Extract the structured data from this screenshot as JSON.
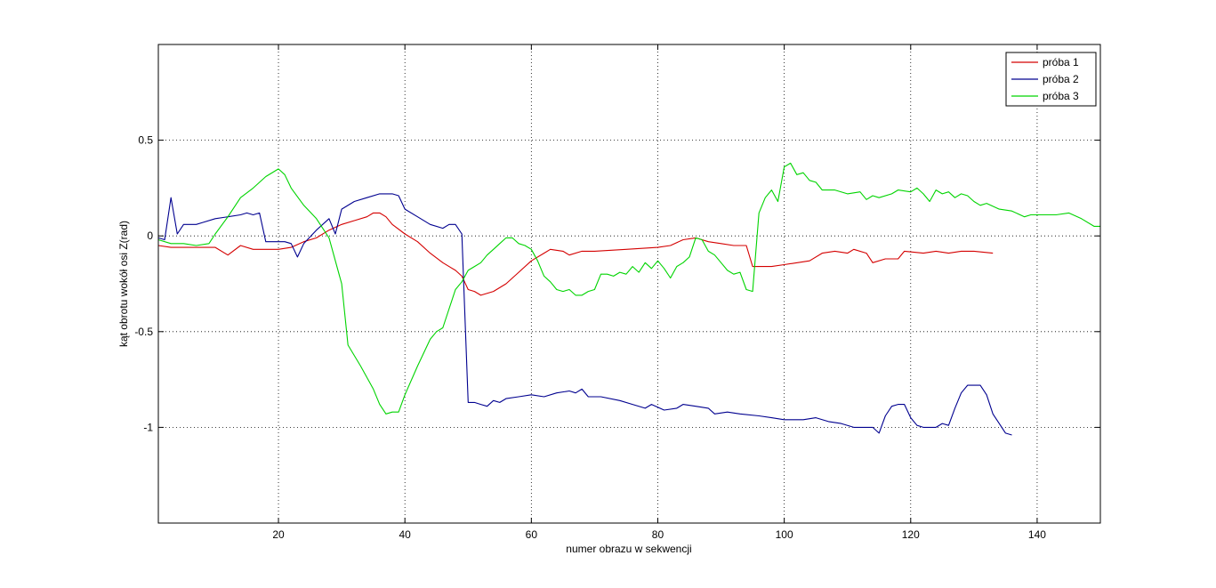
{
  "chart_data": {
    "type": "line",
    "title": "",
    "xlabel": "numer obrazu w sekwencji",
    "ylabel": "kąt obrotu wokół osi Z(rad)",
    "xlim": [
      1,
      150
    ],
    "ylim": [
      -1.5,
      1.0
    ],
    "xticks": [
      20,
      40,
      60,
      80,
      100,
      120,
      140
    ],
    "yticks": [
      0.5,
      0,
      -0.5,
      -1
    ],
    "ytick_labels": [
      "0.5",
      "0",
      "-0.5",
      "-1"
    ],
    "grid": true,
    "legend_position": "top-right",
    "series": [
      {
        "name": "próba 1",
        "color": "#d40000",
        "points": [
          [
            1,
            -0.05
          ],
          [
            3,
            -0.06
          ],
          [
            5,
            -0.06
          ],
          [
            8,
            -0.06
          ],
          [
            10,
            -0.06
          ],
          [
            12,
            -0.1
          ],
          [
            14,
            -0.05
          ],
          [
            16,
            -0.07
          ],
          [
            20,
            -0.07
          ],
          [
            22,
            -0.06
          ],
          [
            24,
            -0.03
          ],
          [
            26,
            -0.01
          ],
          [
            28,
            0.03
          ],
          [
            30,
            0.06
          ],
          [
            32,
            0.08
          ],
          [
            34,
            0.1
          ],
          [
            35,
            0.12
          ],
          [
            36,
            0.12
          ],
          [
            37,
            0.1
          ],
          [
            38,
            0.06
          ],
          [
            40,
            0.01
          ],
          [
            42,
            -0.03
          ],
          [
            44,
            -0.09
          ],
          [
            46,
            -0.14
          ],
          [
            48,
            -0.18
          ],
          [
            49,
            -0.21
          ],
          [
            50,
            -0.28
          ],
          [
            51,
            -0.29
          ],
          [
            52,
            -0.31
          ],
          [
            54,
            -0.29
          ],
          [
            56,
            -0.25
          ],
          [
            58,
            -0.19
          ],
          [
            60,
            -0.13
          ],
          [
            62,
            -0.09
          ],
          [
            63,
            -0.07
          ],
          [
            65,
            -0.08
          ],
          [
            66,
            -0.1
          ],
          [
            68,
            -0.08
          ],
          [
            70,
            -0.08
          ],
          [
            75,
            -0.07
          ],
          [
            80,
            -0.06
          ],
          [
            82,
            -0.05
          ],
          [
            84,
            -0.02
          ],
          [
            86,
            -0.01
          ],
          [
            88,
            -0.03
          ],
          [
            90,
            -0.04
          ],
          [
            92,
            -0.05
          ],
          [
            94,
            -0.05
          ],
          [
            95,
            -0.16
          ],
          [
            98,
            -0.16
          ],
          [
            100,
            -0.15
          ],
          [
            104,
            -0.13
          ],
          [
            106,
            -0.09
          ],
          [
            108,
            -0.08
          ],
          [
            110,
            -0.09
          ],
          [
            111,
            -0.07
          ],
          [
            113,
            -0.09
          ],
          [
            114,
            -0.14
          ],
          [
            116,
            -0.12
          ],
          [
            118,
            -0.12
          ],
          [
            119,
            -0.08
          ],
          [
            122,
            -0.09
          ],
          [
            124,
            -0.08
          ],
          [
            126,
            -0.09
          ],
          [
            128,
            -0.08
          ],
          [
            130,
            -0.08
          ],
          [
            133,
            -0.09
          ]
        ]
      },
      {
        "name": "próba 2",
        "color": "#00008f",
        "points": [
          [
            1,
            -0.01
          ],
          [
            2,
            -0.02
          ],
          [
            3,
            0.2
          ],
          [
            4,
            0.01
          ],
          [
            5,
            0.06
          ],
          [
            7,
            0.06
          ],
          [
            8,
            0.07
          ],
          [
            10,
            0.09
          ],
          [
            12,
            0.1
          ],
          [
            14,
            0.11
          ],
          [
            15,
            0.12
          ],
          [
            16,
            0.11
          ],
          [
            17,
            0.12
          ],
          [
            18,
            -0.03
          ],
          [
            19,
            -0.03
          ],
          [
            21,
            -0.03
          ],
          [
            22,
            -0.04
          ],
          [
            23,
            -0.11
          ],
          [
            24,
            -0.04
          ],
          [
            26,
            0.03
          ],
          [
            28,
            0.09
          ],
          [
            29,
            0.01
          ],
          [
            30,
            0.14
          ],
          [
            32,
            0.18
          ],
          [
            34,
            0.2
          ],
          [
            36,
            0.22
          ],
          [
            38,
            0.22
          ],
          [
            39,
            0.21
          ],
          [
            40,
            0.14
          ],
          [
            42,
            0.1
          ],
          [
            44,
            0.06
          ],
          [
            46,
            0.04
          ],
          [
            47,
            0.06
          ],
          [
            48,
            0.06
          ],
          [
            49,
            0.01
          ],
          [
            50,
            -0.87
          ],
          [
            51,
            -0.87
          ],
          [
            52,
            -0.88
          ],
          [
            53,
            -0.89
          ],
          [
            54,
            -0.86
          ],
          [
            55,
            -0.87
          ],
          [
            56,
            -0.85
          ],
          [
            58,
            -0.84
          ],
          [
            60,
            -0.83
          ],
          [
            62,
            -0.84
          ],
          [
            64,
            -0.82
          ],
          [
            66,
            -0.81
          ],
          [
            67,
            -0.82
          ],
          [
            68,
            -0.8
          ],
          [
            69,
            -0.84
          ],
          [
            71,
            -0.84
          ],
          [
            74,
            -0.86
          ],
          [
            76,
            -0.88
          ],
          [
            78,
            -0.9
          ],
          [
            79,
            -0.88
          ],
          [
            81,
            -0.91
          ],
          [
            83,
            -0.9
          ],
          [
            84,
            -0.88
          ],
          [
            86,
            -0.89
          ],
          [
            88,
            -0.9
          ],
          [
            89,
            -0.93
          ],
          [
            91,
            -0.92
          ],
          [
            93,
            -0.93
          ],
          [
            96,
            -0.94
          ],
          [
            98,
            -0.95
          ],
          [
            100,
            -0.96
          ],
          [
            103,
            -0.96
          ],
          [
            105,
            -0.95
          ],
          [
            107,
            -0.97
          ],
          [
            109,
            -0.98
          ],
          [
            111,
            -1.0
          ],
          [
            114,
            -1.0
          ],
          [
            115,
            -1.03
          ],
          [
            116,
            -0.94
          ],
          [
            117,
            -0.89
          ],
          [
            118,
            -0.88
          ],
          [
            119,
            -0.88
          ],
          [
            120,
            -0.95
          ],
          [
            121,
            -0.99
          ],
          [
            122,
            -1.0
          ],
          [
            124,
            -1.0
          ],
          [
            125,
            -0.98
          ],
          [
            126,
            -0.99
          ],
          [
            127,
            -0.9
          ],
          [
            128,
            -0.82
          ],
          [
            129,
            -0.78
          ],
          [
            131,
            -0.78
          ],
          [
            132,
            -0.83
          ],
          [
            133,
            -0.93
          ],
          [
            134,
            -0.98
          ],
          [
            135,
            -1.03
          ],
          [
            136,
            -1.04
          ]
        ]
      },
      {
        "name": "próba 3",
        "color": "#00d400",
        "points": [
          [
            1,
            -0.02
          ],
          [
            3,
            -0.04
          ],
          [
            5,
            -0.04
          ],
          [
            7,
            -0.05
          ],
          [
            9,
            -0.04
          ],
          [
            10,
            0.01
          ],
          [
            12,
            0.1
          ],
          [
            14,
            0.2
          ],
          [
            16,
            0.25
          ],
          [
            18,
            0.31
          ],
          [
            20,
            0.35
          ],
          [
            21,
            0.32
          ],
          [
            22,
            0.25
          ],
          [
            24,
            0.16
          ],
          [
            26,
            0.09
          ],
          [
            28,
            -0.01
          ],
          [
            30,
            -0.25
          ],
          [
            31,
            -0.57
          ],
          [
            33,
            -0.68
          ],
          [
            35,
            -0.8
          ],
          [
            36,
            -0.88
          ],
          [
            37,
            -0.93
          ],
          [
            38,
            -0.92
          ],
          [
            39,
            -0.92
          ],
          [
            40,
            -0.83
          ],
          [
            42,
            -0.68
          ],
          [
            44,
            -0.54
          ],
          [
            45,
            -0.5
          ],
          [
            46,
            -0.48
          ],
          [
            47,
            -0.38
          ],
          [
            48,
            -0.28
          ],
          [
            49,
            -0.24
          ],
          [
            50,
            -0.18
          ],
          [
            51,
            -0.16
          ],
          [
            52,
            -0.14
          ],
          [
            53,
            -0.1
          ],
          [
            54,
            -0.07
          ],
          [
            55,
            -0.04
          ],
          [
            56,
            -0.01
          ],
          [
            57,
            -0.01
          ],
          [
            58,
            -0.04
          ],
          [
            59,
            -0.05
          ],
          [
            60,
            -0.07
          ],
          [
            61,
            -0.13
          ],
          [
            62,
            -0.21
          ],
          [
            63,
            -0.24
          ],
          [
            64,
            -0.28
          ],
          [
            65,
            -0.29
          ],
          [
            66,
            -0.28
          ],
          [
            67,
            -0.31
          ],
          [
            68,
            -0.31
          ],
          [
            69,
            -0.29
          ],
          [
            70,
            -0.28
          ],
          [
            71,
            -0.2
          ],
          [
            72,
            -0.2
          ],
          [
            73,
            -0.21
          ],
          [
            74,
            -0.19
          ],
          [
            75,
            -0.2
          ],
          [
            76,
            -0.16
          ],
          [
            77,
            -0.19
          ],
          [
            78,
            -0.14
          ],
          [
            79,
            -0.17
          ],
          [
            80,
            -0.13
          ],
          [
            81,
            -0.17
          ],
          [
            82,
            -0.22
          ],
          [
            83,
            -0.16
          ],
          [
            84,
            -0.14
          ],
          [
            85,
            -0.11
          ],
          [
            86,
            -0.01
          ],
          [
            87,
            -0.02
          ],
          [
            88,
            -0.08
          ],
          [
            89,
            -0.1
          ],
          [
            90,
            -0.14
          ],
          [
            91,
            -0.18
          ],
          [
            92,
            -0.2
          ],
          [
            93,
            -0.19
          ],
          [
            94,
            -0.28
          ],
          [
            95,
            -0.29
          ],
          [
            96,
            0.12
          ],
          [
            97,
            0.2
          ],
          [
            98,
            0.24
          ],
          [
            99,
            0.18
          ],
          [
            100,
            0.36
          ],
          [
            101,
            0.38
          ],
          [
            102,
            0.32
          ],
          [
            103,
            0.33
          ],
          [
            104,
            0.29
          ],
          [
            105,
            0.28
          ],
          [
            106,
            0.24
          ],
          [
            108,
            0.24
          ],
          [
            110,
            0.22
          ],
          [
            112,
            0.23
          ],
          [
            113,
            0.19
          ],
          [
            114,
            0.21
          ],
          [
            115,
            0.2
          ],
          [
            117,
            0.22
          ],
          [
            118,
            0.24
          ],
          [
            120,
            0.23
          ],
          [
            121,
            0.25
          ],
          [
            122,
            0.22
          ],
          [
            123,
            0.18
          ],
          [
            124,
            0.24
          ],
          [
            125,
            0.22
          ],
          [
            126,
            0.23
          ],
          [
            127,
            0.2
          ],
          [
            128,
            0.22
          ],
          [
            129,
            0.21
          ],
          [
            130,
            0.18
          ],
          [
            131,
            0.16
          ],
          [
            132,
            0.17
          ],
          [
            134,
            0.14
          ],
          [
            136,
            0.13
          ],
          [
            138,
            0.1
          ],
          [
            139,
            0.11
          ],
          [
            141,
            0.11
          ],
          [
            143,
            0.11
          ],
          [
            145,
            0.12
          ],
          [
            147,
            0.09
          ],
          [
            149,
            0.05
          ],
          [
            150,
            0.05
          ]
        ]
      }
    ]
  }
}
